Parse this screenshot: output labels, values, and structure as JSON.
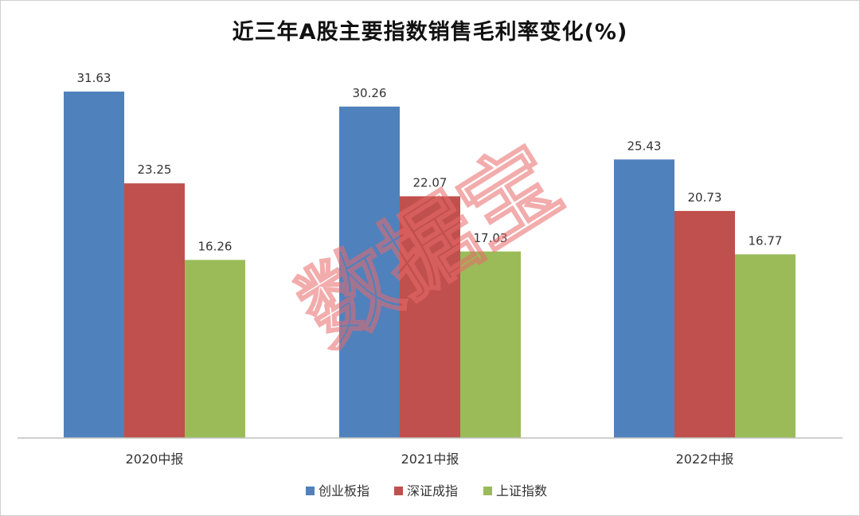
{
  "chart_data": {
    "type": "bar",
    "title": "近三年A股主要指数销售毛利率变化(%)",
    "categories": [
      "2020中报",
      "2021中报",
      "2022中报"
    ],
    "series": [
      {
        "name": "创业板指",
        "color": "#4f81bd",
        "values": [
          31.63,
          30.26,
          25.43
        ]
      },
      {
        "name": "深证成指",
        "color": "#c0504d",
        "values": [
          23.25,
          22.07,
          20.73
        ]
      },
      {
        "name": "上证指数",
        "color": "#9bbb59",
        "values": [
          16.26,
          17.03,
          16.77
        ]
      }
    ],
    "ylim": [
      0,
      31.63
    ],
    "grid": false,
    "legend": "bottom",
    "data_labels": true
  },
  "watermark": {
    "text": "数据宝",
    "color": "#e86a6a"
  }
}
